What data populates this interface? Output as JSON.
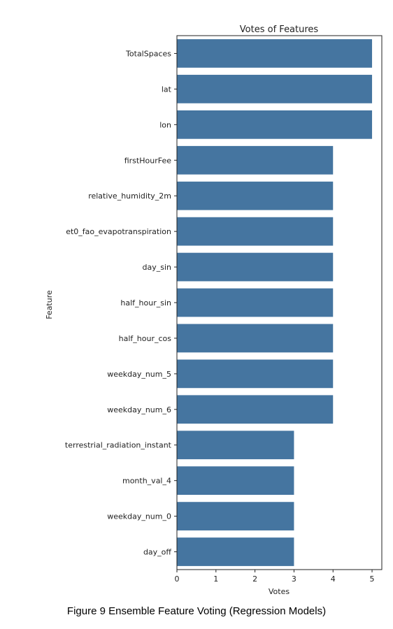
{
  "chart_data": {
    "type": "bar",
    "orientation": "horizontal",
    "title": "Votes of Features",
    "xlabel": "Votes",
    "ylabel": "Feature",
    "xlim": [
      0,
      5.25
    ],
    "x_ticks": [
      0,
      1,
      2,
      3,
      4,
      5
    ],
    "grid": false,
    "bar_color": "#4575a0",
    "categories": [
      "TotalSpaces",
      "lat",
      "lon",
      "firstHourFee",
      "relative_humidity_2m",
      "et0_fao_evapotranspiration",
      "day_sin",
      "half_hour_sin",
      "half_hour_cos",
      "weekday_num_5",
      "weekday_num_6",
      "terrestrial_radiation_instant",
      "month_val_4",
      "weekday_num_0",
      "day_off"
    ],
    "values": [
      5,
      5,
      5,
      4,
      4,
      4,
      4,
      4,
      4,
      4,
      4,
      3,
      3,
      3,
      3
    ]
  },
  "caption": "Figure 9 Ensemble Feature Voting (Regression Models)"
}
